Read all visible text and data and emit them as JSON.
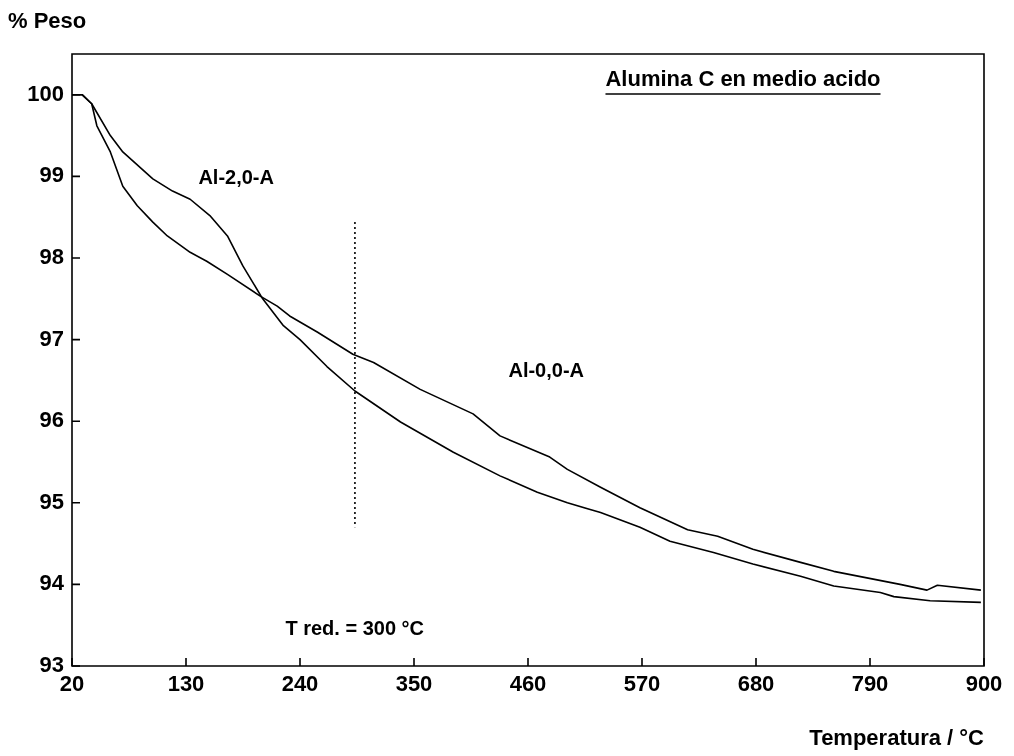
{
  "chart_data": {
    "type": "line",
    "title": "Alumina C en medio acido",
    "xlabel": "Temperatura / °C",
    "ylabel": "% Peso",
    "xlim": [
      20,
      900
    ],
    "xticks": [
      20,
      130,
      240,
      350,
      460,
      570,
      680,
      790,
      900
    ],
    "ylim": [
      93,
      100.5
    ],
    "yticks": [
      93,
      94,
      95,
      96,
      97,
      98,
      99,
      100
    ],
    "grid": false,
    "legend": false,
    "marker": "none",
    "series": [
      {
        "name": "Al-2,0-A",
        "color": "#000000",
        "x": [
          20,
          30,
          39,
          57,
          69,
          98,
          117,
          134,
          153,
          170,
          185,
          204,
          224,
          240,
          266,
          293,
          337,
          388,
          433,
          469,
          498,
          530,
          568,
          597,
          639,
          677,
          723,
          755,
          800,
          813,
          848,
          897
        ],
        "values": [
          100.0,
          100.0,
          99.89,
          99.5,
          99.3,
          98.97,
          98.82,
          98.72,
          98.52,
          98.27,
          97.9,
          97.5,
          97.17,
          97.0,
          96.67,
          96.37,
          95.99,
          95.62,
          95.33,
          95.13,
          95.0,
          94.88,
          94.7,
          94.53,
          94.39,
          94.25,
          94.1,
          93.98,
          93.9,
          93.85,
          93.8,
          93.78
        ]
      },
      {
        "name": "Al-0,0-A",
        "color": "#000000",
        "x": [
          20,
          30,
          39,
          44,
          57,
          69,
          83,
          98,
          112,
          134,
          150,
          170,
          202,
          218,
          230,
          257,
          291,
          311,
          356,
          407,
          433,
          481,
          498,
          530,
          568,
          614,
          643,
          677,
          723,
          755,
          787,
          819,
          845,
          855,
          897
        ],
        "values": [
          100.0,
          100.0,
          99.89,
          99.62,
          99.3,
          98.88,
          98.64,
          98.44,
          98.27,
          98.07,
          97.96,
          97.8,
          97.53,
          97.41,
          97.29,
          97.09,
          96.82,
          96.72,
          96.39,
          96.09,
          95.82,
          95.56,
          95.41,
          95.19,
          94.94,
          94.67,
          94.59,
          94.43,
          94.27,
          94.16,
          94.08,
          94.0,
          93.93,
          93.99,
          93.93
        ]
      },
      {
        "color": "#000000",
        "line_style": "dotted",
        "x": [
          293,
          293
        ],
        "values": [
          98.44,
          94.7
        ]
      }
    ],
    "annotations": [
      "T red. = 300 °C"
    ]
  }
}
